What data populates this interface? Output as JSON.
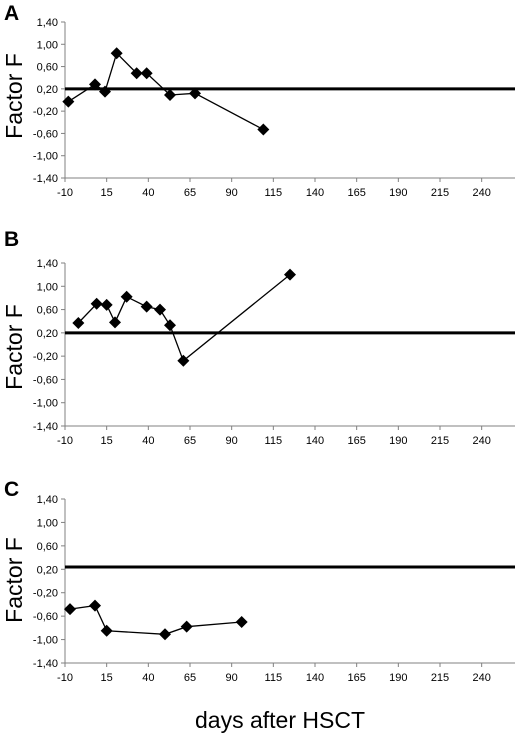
{
  "xlabel": "days after HSCT",
  "colors": {
    "axis": "#808080",
    "series": "#000000",
    "reference": "#000000"
  },
  "chart_data": [
    {
      "type": "line",
      "panel": "A",
      "ylabel": "Factor F",
      "xlim": [
        -10,
        260
      ],
      "ylim": [
        -1.4,
        1.4
      ],
      "x_ticks": [
        "-10",
        "15",
        "40",
        "65",
        "90",
        "115",
        "140",
        "165",
        "190",
        "215",
        "240"
      ],
      "y_ticks": [
        "1,40",
        "1,00",
        "0,60",
        "0,20",
        "-0,20",
        "-0,60",
        "-1,00",
        "-1,40"
      ],
      "reference_line": 0.2,
      "series": [
        {
          "x": [
            -8,
            8,
            14,
            21,
            33,
            39,
            53,
            68,
            109
          ],
          "y": [
            -0.03,
            0.28,
            0.15,
            0.84,
            0.48,
            0.48,
            0.09,
            0.12,
            -0.53
          ]
        }
      ]
    },
    {
      "type": "line",
      "panel": "B",
      "ylabel": "Factor F",
      "xlim": [
        -10,
        260
      ],
      "ylim": [
        -1.4,
        1.4
      ],
      "x_ticks": [
        "-10",
        "15",
        "40",
        "65",
        "90",
        "115",
        "140",
        "165",
        "190",
        "215",
        "240"
      ],
      "y_ticks": [
        "1,40",
        "1,00",
        "0,60",
        "0,20",
        "-0,20",
        "-0,60",
        "-1,00",
        "-1,40"
      ],
      "reference_line": 0.2,
      "series": [
        {
          "x": [
            -2,
            9,
            15,
            20,
            27,
            39,
            47,
            53,
            61,
            125
          ],
          "y": [
            0.37,
            0.7,
            0.68,
            0.38,
            0.82,
            0.65,
            0.6,
            0.33,
            -0.28,
            1.2
          ]
        }
      ]
    },
    {
      "type": "line",
      "panel": "C",
      "ylabel": "Factor F",
      "xlim": [
        -10,
        260
      ],
      "ylim": [
        -1.4,
        1.4
      ],
      "x_ticks": [
        "-10",
        "15",
        "40",
        "65",
        "90",
        "115",
        "140",
        "165",
        "190",
        "215",
        "240"
      ],
      "y_ticks": [
        "1,40",
        "1,00",
        "0,60",
        "0,20",
        "-0,20",
        "-0,60",
        "-1,00",
        "-1,40"
      ],
      "reference_line": 0.24,
      "series": [
        {
          "x": [
            -7,
            8,
            15,
            50,
            63,
            96
          ],
          "y": [
            -0.48,
            -0.42,
            -0.85,
            -0.91,
            -0.78,
            -0.7
          ]
        }
      ]
    }
  ]
}
